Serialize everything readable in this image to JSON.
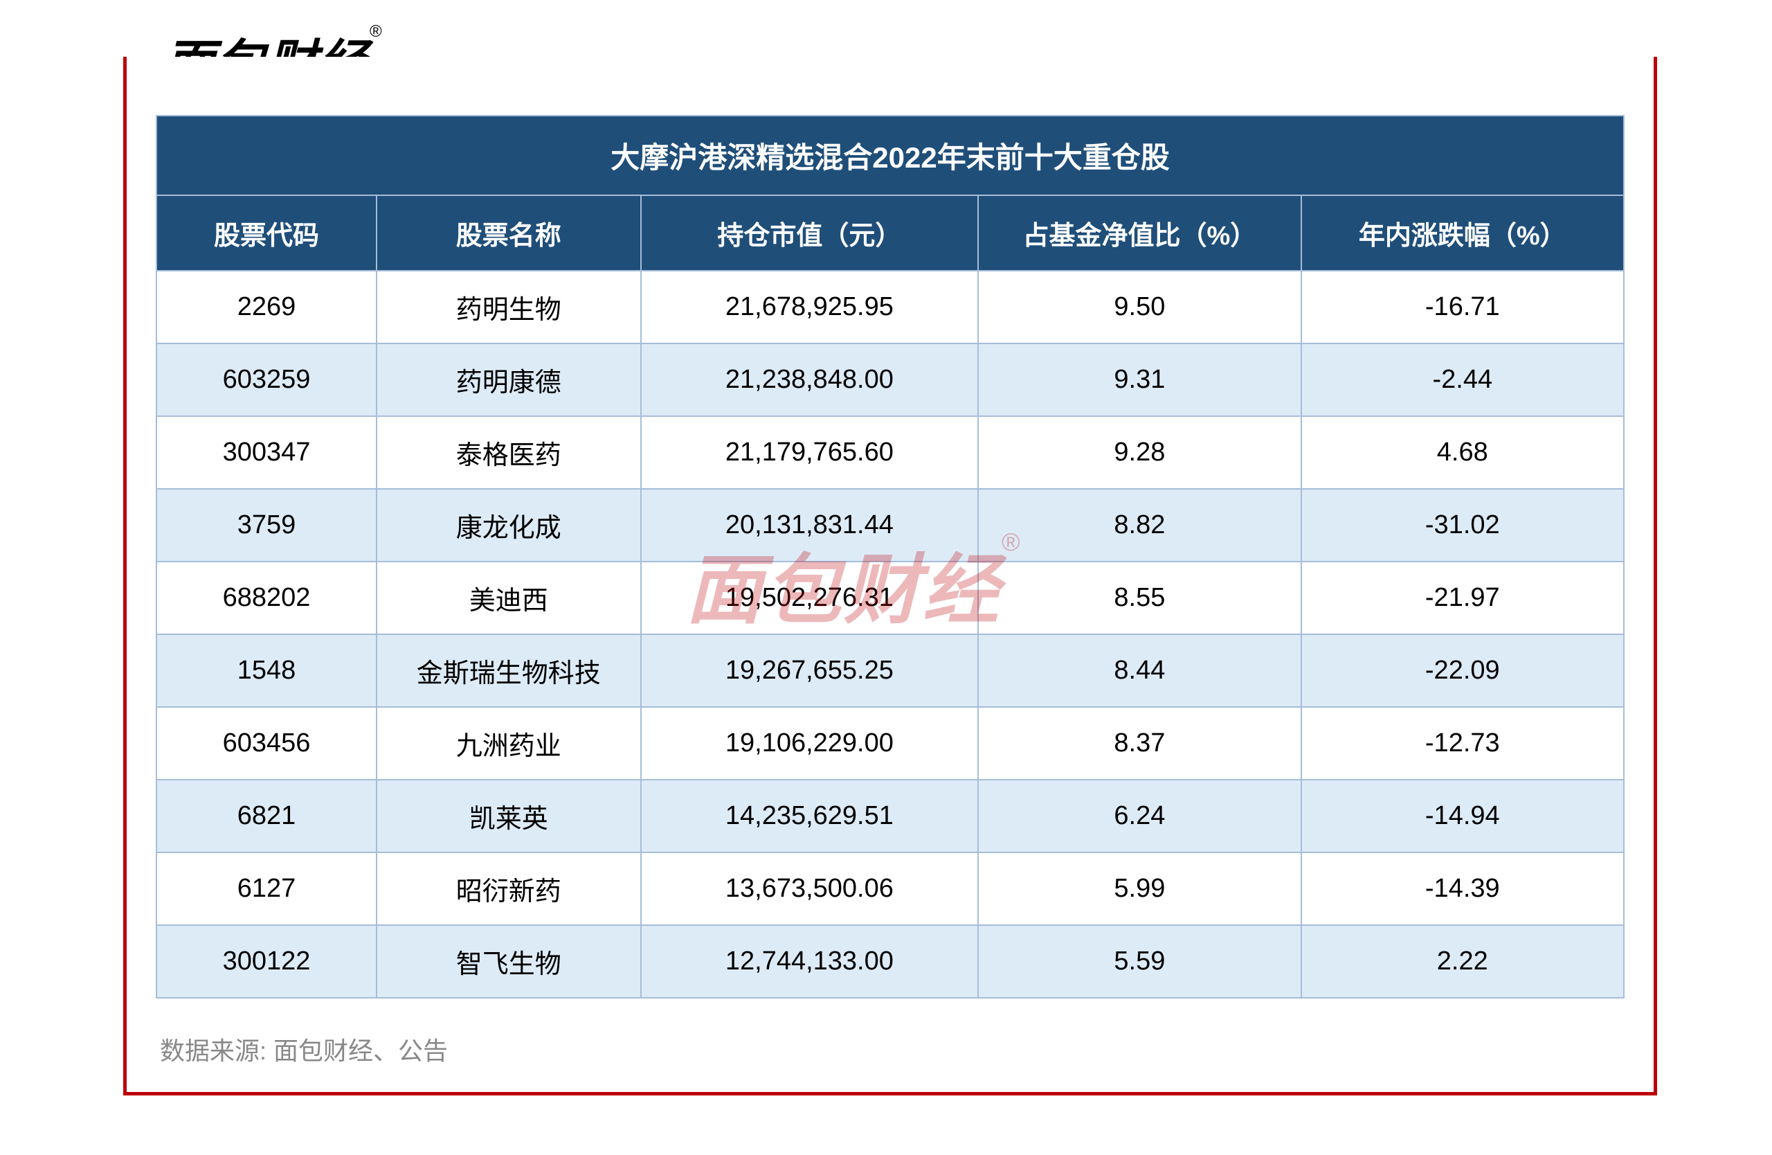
{
  "brand": {
    "logo_text": "面包财经",
    "reg_mark": "®",
    "logo_color": "#000000",
    "border_color": "#bd0008"
  },
  "watermark": {
    "text": "面包财经",
    "reg_mark": "®",
    "color_rgba": "rgba(189,0,8,0.28)"
  },
  "table": {
    "type": "table",
    "title": "大摩沪港深精选混合2022年末前十大重仓股",
    "columns": [
      "股票代码",
      "股票名称",
      "持仓市值（元）",
      "占基金净值比（%）",
      "年内涨跌幅（%）"
    ],
    "column_widths_pct": [
      15,
      18,
      23,
      22,
      22
    ],
    "header_bg": "#1f4e79",
    "header_fg": "#ffffff",
    "row_bg_odd": "#ffffff",
    "row_bg_even": "#ddebf7",
    "border_color": "#a6bdd9",
    "title_fontsize": 42,
    "header_fontsize": 38,
    "cell_fontsize": 38,
    "rows": [
      [
        "2269",
        "药明生物",
        "21,678,925.95",
        "9.50",
        "-16.71"
      ],
      [
        "603259",
        "药明康德",
        "21,238,848.00",
        "9.31",
        "-2.44"
      ],
      [
        "300347",
        "泰格医药",
        "21,179,765.60",
        "9.28",
        "4.68"
      ],
      [
        "3759",
        "康龙化成",
        "20,131,831.44",
        "8.82",
        "-31.02"
      ],
      [
        "688202",
        "美迪西",
        "19,502,276.31",
        "8.55",
        "-21.97"
      ],
      [
        "1548",
        "金斯瑞生物科技",
        "19,267,655.25",
        "8.44",
        "-22.09"
      ],
      [
        "603456",
        "九洲药业",
        "19,106,229.00",
        "8.37",
        "-12.73"
      ],
      [
        "6821",
        "凯莱英",
        "14,235,629.51",
        "6.24",
        "-14.94"
      ],
      [
        "6127",
        "昭衍新药",
        "13,673,500.06",
        "5.99",
        "-14.39"
      ],
      [
        "300122",
        "智飞生物",
        "12,744,133.00",
        "5.59",
        "2.22"
      ]
    ]
  },
  "source_note": "数据来源: 面包财经、公告",
  "source_note_color": "#888888"
}
